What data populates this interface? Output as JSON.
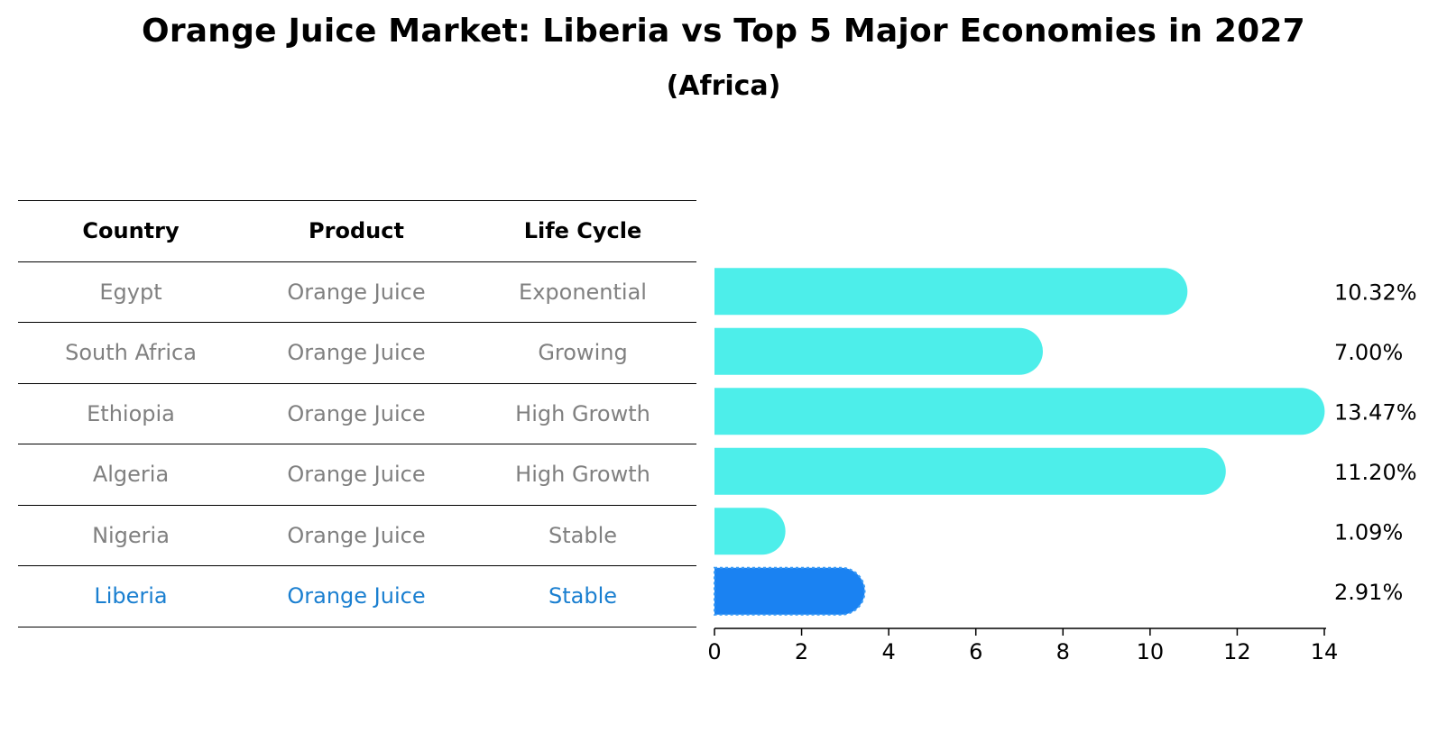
{
  "title": "Orange Juice Market: Liberia vs Top 5 Major Economies in 2027",
  "subtitle": "(Africa)",
  "table": {
    "headers": [
      "Country",
      "Product",
      "Life Cycle"
    ],
    "rows": [
      [
        "Egypt",
        "Orange Juice",
        "Exponential"
      ],
      [
        "South Africa",
        "Orange Juice",
        "Growing"
      ],
      [
        "Ethiopia",
        "Orange Juice",
        "High Growth"
      ],
      [
        "Algeria",
        "Orange Juice",
        "High Growth"
      ],
      [
        "Nigeria",
        "Orange Juice",
        "Stable"
      ],
      [
        "Liberia",
        "Orange Juice",
        "Stable"
      ]
    ],
    "highlight_row": 5
  },
  "colors": {
    "bar": "#4deeea",
    "highlight": "#1a82f2",
    "muted_text": "#808080",
    "highlight_text": "#1a7fd0"
  },
  "chart_data": {
    "type": "bar",
    "orientation": "horizontal",
    "categories": [
      "Egypt",
      "South Africa",
      "Ethiopia",
      "Algeria",
      "Nigeria",
      "Liberia"
    ],
    "values": [
      10.32,
      7.0,
      13.47,
      11.2,
      1.09,
      2.91
    ],
    "value_labels": [
      "10.32%",
      "7.00%",
      "13.47%",
      "11.20%",
      "1.09%",
      "2.91%"
    ],
    "highlight": "Liberia",
    "xlim": [
      0,
      14
    ],
    "xticks": [
      0,
      2,
      4,
      6,
      8,
      10,
      12,
      14
    ],
    "xtick_labels": [
      "0",
      "2",
      "4",
      "6",
      "8",
      "10",
      "12",
      "14"
    ],
    "grid": false
  }
}
